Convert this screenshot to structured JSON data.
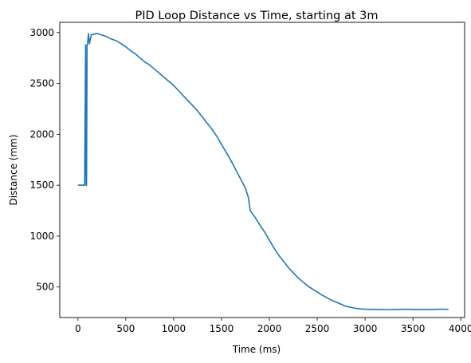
{
  "chart_data": {
    "type": "line",
    "title": "PID Loop Distance vs Time, starting at 3m",
    "xlabel": "Time (ms)",
    "ylabel": "Distance (mm)",
    "xlim": [
      -190,
      4040
    ],
    "ylim": [
      200,
      3100
    ],
    "xticks": [
      0,
      500,
      1000,
      1500,
      2000,
      2500,
      3000,
      3500,
      4000
    ],
    "yticks": [
      500,
      1000,
      1500,
      2000,
      2500,
      3000
    ],
    "grid": false,
    "legend": "none",
    "colors": {
      "line": "#1f77b4"
    },
    "series": [
      {
        "x": [
          0,
          20,
          40,
          60,
          65,
          70,
          80,
          85,
          90,
          95,
          100,
          110,
          120,
          140,
          160,
          200,
          250,
          300,
          350,
          400,
          450,
          500,
          550,
          600,
          650,
          700,
          750,
          800,
          850,
          900,
          950,
          1000,
          1050,
          1100,
          1150,
          1200,
          1250,
          1300,
          1350,
          1400,
          1450,
          1500,
          1550,
          1600,
          1650,
          1700,
          1750,
          1780,
          1800,
          1850,
          1900,
          1950,
          2000,
          2050,
          2100,
          2150,
          2200,
          2250,
          2300,
          2350,
          2400,
          2450,
          2500,
          2550,
          2600,
          2650,
          2700,
          2750,
          2800,
          2850,
          2900,
          2950,
          3000,
          3050,
          3100,
          3150,
          3200,
          3250,
          3300,
          3350,
          3400,
          3450,
          3500,
          3550,
          3600,
          3650,
          3700,
          3750,
          3800,
          3850,
          3870
        ],
        "y": [
          1500,
          1500,
          1500,
          1500,
          1500,
          1500,
          2880,
          1500,
          1500,
          2880,
          2880,
          2990,
          2890,
          2980,
          2980,
          2990,
          2975,
          2960,
          2935,
          2920,
          2890,
          2860,
          2820,
          2790,
          2750,
          2710,
          2680,
          2640,
          2600,
          2560,
          2520,
          2480,
          2430,
          2380,
          2330,
          2280,
          2230,
          2170,
          2110,
          2050,
          1980,
          1900,
          1820,
          1740,
          1650,
          1560,
          1470,
          1380,
          1250,
          1185,
          1110,
          1040,
          960,
          880,
          810,
          750,
          690,
          640,
          590,
          550,
          510,
          480,
          450,
          420,
          395,
          370,
          350,
          330,
          310,
          300,
          290,
          285,
          282,
          280,
          280,
          279,
          278,
          278,
          279,
          280,
          281,
          281,
          280,
          280,
          279,
          280,
          280,
          281,
          282,
          281,
          280
        ]
      }
    ]
  }
}
